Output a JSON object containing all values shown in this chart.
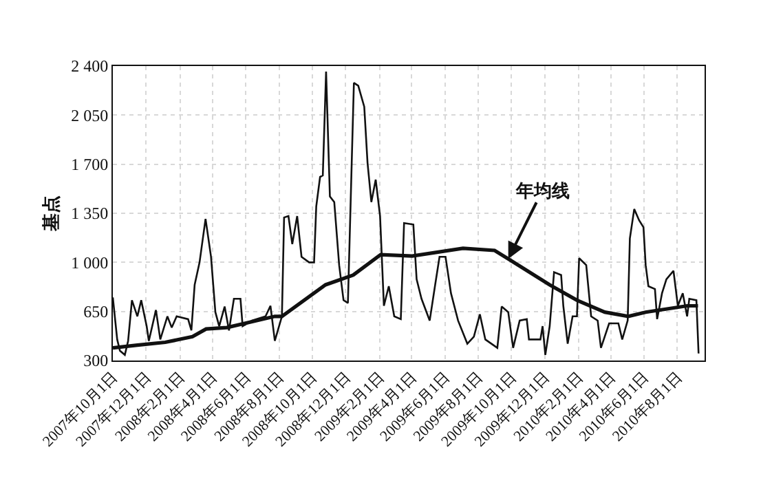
{
  "chart_data": {
    "type": "line",
    "ylabel": "基点",
    "xlim": [
      "2007-10-01",
      "2010-09-20"
    ],
    "xticks": [
      {
        "value": "2007-10-01",
        "label": "2007年10月1日"
      },
      {
        "value": "2007-12-01",
        "label": "2007年12月1日"
      },
      {
        "value": "2008-02-01",
        "label": "2008年2月1日"
      },
      {
        "value": "2008-04-01",
        "label": "2008年4月1日"
      },
      {
        "value": "2008-06-01",
        "label": "2008年6月1日"
      },
      {
        "value": "2008-08-01",
        "label": "2008年8月1日"
      },
      {
        "value": "2008-10-01",
        "label": "2008年10月1日"
      },
      {
        "value": "2008-12-01",
        "label": "2008年12月1日"
      },
      {
        "value": "2009-02-01",
        "label": "2009年2月1日"
      },
      {
        "value": "2009-04-01",
        "label": "2009年4月1日"
      },
      {
        "value": "2009-06-01",
        "label": "2009年6月1日"
      },
      {
        "value": "2009-08-01",
        "label": "2009年8月1日"
      },
      {
        "value": "2009-10-01",
        "label": "2009年10月1日"
      },
      {
        "value": "2009-12-01",
        "label": "2009年12月1日"
      },
      {
        "value": "2010-02-01",
        "label": "2010年2月1日"
      },
      {
        "value": "2010-04-01",
        "label": "2010年4月1日"
      },
      {
        "value": "2010-06-01",
        "label": "2010年6月1日"
      },
      {
        "value": "2010-08-01",
        "label": "2010年8月1日"
      }
    ],
    "ylim": [
      300,
      2400
    ],
    "yticks": [
      300,
      650,
      {
        "value": 1000,
        "label": "1 000"
      },
      {
        "value": 1350,
        "label": "1 350"
      },
      {
        "value": 1700,
        "label": "1 700"
      },
      {
        "value": 2050,
        "label": "2 050"
      },
      {
        "value": 2400,
        "label": "2 400"
      }
    ],
    "grid": true,
    "marker": "none",
    "series": [
      {
        "color": "#111111",
        "x": [
          "2007-10-01",
          "2007-10-09",
          "2007-10-14",
          "2007-10-23",
          "2007-10-29",
          "2007-11-05",
          "2007-11-15",
          "2007-11-22",
          "2007-12-02",
          "2007-12-06",
          "2007-12-19",
          "2007-12-27",
          "2008-01-09",
          "2008-01-17",
          "2008-01-26",
          "2008-02-16",
          "2008-02-22",
          "2008-02-28",
          "2008-03-08",
          "2008-03-19",
          "2008-03-29",
          "2008-04-06",
          "2008-04-13",
          "2008-04-23",
          "2008-05-01",
          "2008-05-10",
          "2008-05-22",
          "2008-05-26",
          "2008-06-12",
          "2008-07-07",
          "2008-07-16",
          "2008-07-24",
          "2008-08-06",
          "2008-08-10",
          "2008-08-18",
          "2008-08-25",
          "2008-09-03",
          "2008-09-11",
          "2008-09-25",
          "2008-10-04",
          "2008-10-08",
          "2008-10-15",
          "2008-10-20",
          "2008-10-26",
          "2008-11-02",
          "2008-11-10",
          "2008-11-19",
          "2008-11-27",
          "2008-12-05",
          "2008-12-16",
          "2008-12-24",
          "2009-01-04",
          "2009-01-10",
          "2009-01-17",
          "2009-01-25",
          "2009-02-02",
          "2009-02-09",
          "2009-02-18",
          "2009-02-28",
          "2009-03-12",
          "2009-03-18",
          "2009-04-04",
          "2009-04-10",
          "2009-04-19",
          "2009-05-04",
          "2009-05-14",
          "2009-05-22",
          "2009-06-02",
          "2009-06-12",
          "2009-06-25",
          "2009-07-12",
          "2009-07-24",
          "2009-08-04",
          "2009-08-14",
          "2009-09-05",
          "2009-09-13",
          "2009-09-25",
          "2009-10-04",
          "2009-10-16",
          "2009-10-29",
          "2009-11-02",
          "2009-11-23",
          "2009-11-27",
          "2009-12-02",
          "2009-12-10",
          "2009-12-18",
          "2009-12-31",
          "2010-01-04",
          "2010-01-12",
          "2010-01-21",
          "2010-01-29",
          "2010-02-02",
          "2010-02-15",
          "2010-02-24",
          "2010-03-08",
          "2010-03-14",
          "2010-03-29",
          "2010-04-15",
          "2010-04-22",
          "2010-05-02",
          "2010-05-06",
          "2010-05-14",
          "2010-05-23",
          "2010-05-31",
          "2010-06-04",
          "2010-06-09",
          "2010-06-21",
          "2010-06-25",
          "2010-07-04",
          "2010-07-12",
          "2010-07-25",
          "2010-08-02",
          "2010-08-11",
          "2010-08-19",
          "2010-08-23",
          "2010-09-05",
          "2010-09-09"
        ],
        "values": [
          750,
          450,
          370,
          340,
          440,
          730,
          615,
          730,
          545,
          440,
          660,
          450,
          615,
          535,
          615,
          595,
          515,
          840,
          1000,
          1310,
          1040,
          645,
          545,
          685,
          515,
          740,
          740,
          545,
          585,
          615,
          690,
          440,
          615,
          1320,
          1330,
          1130,
          1330,
          1040,
          1000,
          1000,
          1400,
          1610,
          1620,
          2360,
          1470,
          1430,
          980,
          730,
          710,
          2280,
          2260,
          2110,
          1710,
          1430,
          1590,
          1330,
          690,
          830,
          615,
          595,
          1280,
          1270,
          880,
          740,
          585,
          840,
          1040,
          1040,
          780,
          585,
          420,
          470,
          630,
          450,
          390,
          685,
          645,
          390,
          585,
          595,
          450,
          450,
          545,
          340,
          545,
          930,
          910,
          690,
          420,
          615,
          615,
          1030,
          980,
          615,
          585,
          390,
          565,
          565,
          450,
          585,
          1170,
          1380,
          1300,
          1250,
          980,
          830,
          810,
          595,
          780,
          880,
          940,
          690,
          780,
          615,
          740,
          730,
          350
        ]
      },
      {
        "color": "#111111",
        "x": [
          "2007-10-01",
          "2007-11-15",
          "2008-01-05",
          "2008-02-24",
          "2008-03-20",
          "2008-04-27",
          "2008-07-24",
          "2008-08-06",
          "2008-10-25",
          "2008-12-15",
          "2009-02-03",
          "2009-04-02",
          "2009-07-04",
          "2009-08-31",
          "2009-09-25",
          "2009-12-10",
          "2010-01-29",
          "2010-03-21",
          "2010-05-03",
          "2010-06-04",
          "2010-08-19",
          "2010-09-08"
        ],
        "values": [
          390,
          410,
          430,
          470,
          525,
          535,
          615,
          615,
          840,
          910,
          1055,
          1045,
          1100,
          1085,
          1025,
          840,
          730,
          645,
          615,
          645,
          690,
          690
        ]
      }
    ],
    "annotations": [
      {
        "text": "年均线",
        "x": "2009-09-25",
        "y": 1025
      }
    ]
  }
}
